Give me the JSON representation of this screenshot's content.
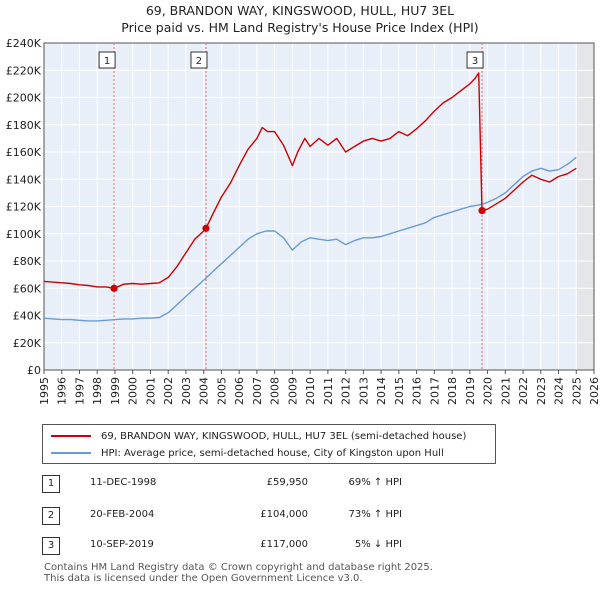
{
  "header": {
    "title_line1": "69, BRANDON WAY, KINGSWOOD, HULL, HU7 3EL",
    "title_line2": "Price paid vs. HM Land Registry's House Price Index (HPI)"
  },
  "legend": {
    "property_label": "69, BRANDON WAY, KINGSWOOD, HULL, HU7 3EL (semi-detached house)",
    "hpi_label": "HPI: Average price, semi-detached house, City of Kingston upon Hull"
  },
  "transactions": [
    {
      "num": "1",
      "date": "11-DEC-1998",
      "price": "£59,950",
      "hpi": "69% ↑ HPI"
    },
    {
      "num": "2",
      "date": "20-FEB-2004",
      "price": "£104,000",
      "hpi": "73% ↑ HPI"
    },
    {
      "num": "3",
      "date": "10-SEP-2019",
      "price": "£117,000",
      "hpi": "5% ↓ HPI"
    }
  ],
  "footer": {
    "line1": "Contains HM Land Registry data © Crown copyright and database right 2025.",
    "line2": "This data is licensed under the Open Government Licence v3.0."
  },
  "colors": {
    "property": "#cc0000",
    "hpi": "#6a9bd2",
    "plot_bg": "#e8eff8",
    "future_band": "#e4e6ea",
    "grid": "#ffffff"
  },
  "chart_data": {
    "type": "line",
    "xlim": [
      1995,
      2026
    ],
    "ylim": [
      0,
      240000
    ],
    "x_ticks": [
      "1995",
      "1996",
      "1997",
      "1998",
      "1999",
      "2000",
      "2001",
      "2002",
      "2003",
      "2004",
      "2005",
      "2006",
      "2007",
      "2008",
      "2009",
      "2010",
      "2011",
      "2012",
      "2013",
      "2014",
      "2015",
      "2016",
      "2017",
      "2018",
      "2019",
      "2020",
      "2021",
      "2022",
      "2023",
      "2024",
      "2025",
      "2026"
    ],
    "y_ticks": [
      {
        "value": 0,
        "label": "£0"
      },
      {
        "value": 20000,
        "label": "£20K"
      },
      {
        "value": 40000,
        "label": "£40K"
      },
      {
        "value": 60000,
        "label": "£60K"
      },
      {
        "value": 80000,
        "label": "£80K"
      },
      {
        "value": 100000,
        "label": "£100K"
      },
      {
        "value": 120000,
        "label": "£120K"
      },
      {
        "value": 140000,
        "label": "£140K"
      },
      {
        "value": 160000,
        "label": "£160K"
      },
      {
        "value": 180000,
        "label": "£180K"
      },
      {
        "value": 200000,
        "label": "£200K"
      },
      {
        "value": 220000,
        "label": "£220K"
      },
      {
        "value": 240000,
        "label": "£240K"
      }
    ],
    "future_start": 2025.0,
    "series": [
      {
        "name": "69, BRANDON WAY, KINGSWOOD, HULL, HU7 3EL (semi-detached house)",
        "x": [
          1995.0,
          1995.5,
          1996.0,
          1996.5,
          1997.0,
          1997.5,
          1998.0,
          1998.5,
          1998.95,
          1999.5,
          2000.0,
          2000.5,
          2001.0,
          2001.5,
          2002.0,
          2002.5,
          2003.0,
          2003.5,
          2004.0,
          2004.13,
          2004.5,
          2005.0,
          2005.5,
          2006.0,
          2006.5,
          2007.0,
          2007.3,
          2007.6,
          2008.0,
          2008.5,
          2009.0,
          2009.3,
          2009.7,
          2010.0,
          2010.5,
          2011.0,
          2011.5,
          2012.0,
          2012.5,
          2013.0,
          2013.5,
          2014.0,
          2014.5,
          2015.0,
          2015.5,
          2016.0,
          2016.5,
          2017.0,
          2017.5,
          2018.0,
          2018.5,
          2019.0,
          2019.3,
          2019.5,
          2019.69,
          2020.0,
          2020.5,
          2021.0,
          2021.5,
          2022.0,
          2022.5,
          2023.0,
          2023.5,
          2024.0,
          2024.5,
          2025.0
        ],
        "values": [
          65000,
          64500,
          64000,
          63500,
          62500,
          62000,
          61000,
          61000,
          59950,
          63000,
          63500,
          63000,
          63500,
          64000,
          68000,
          76000,
          86000,
          96000,
          102000,
          104000,
          114000,
          127000,
          137000,
          150000,
          162000,
          170000,
          178000,
          175000,
          175000,
          165000,
          150000,
          160000,
          170000,
          164000,
          170000,
          165000,
          170000,
          160000,
          164000,
          168000,
          170000,
          168000,
          170000,
          175000,
          172000,
          177000,
          183000,
          190000,
          196000,
          200000,
          205000,
          210000,
          214000,
          218000,
          117000,
          118000,
          122000,
          126000,
          132000,
          138000,
          143000,
          140000,
          138000,
          142000,
          144000,
          148000
        ]
      },
      {
        "name": "HPI: Average price, semi-detached house, City of Kingston upon Hull",
        "x": [
          1995.0,
          1995.5,
          1996.0,
          1996.5,
          1997.0,
          1997.5,
          1998.0,
          1998.5,
          1999.0,
          1999.5,
          2000.0,
          2000.5,
          2001.0,
          2001.5,
          2002.0,
          2002.5,
          2003.0,
          2003.5,
          2004.0,
          2004.5,
          2005.0,
          2005.5,
          2006.0,
          2006.5,
          2007.0,
          2007.5,
          2008.0,
          2008.5,
          2009.0,
          2009.5,
          2010.0,
          2010.5,
          2011.0,
          2011.5,
          2012.0,
          2012.5,
          2013.0,
          2013.5,
          2014.0,
          2014.5,
          2015.0,
          2015.5,
          2016.0,
          2016.5,
          2017.0,
          2017.5,
          2018.0,
          2018.5,
          2019.0,
          2019.5,
          2020.0,
          2020.5,
          2021.0,
          2021.5,
          2022.0,
          2022.5,
          2023.0,
          2023.5,
          2024.0,
          2024.5,
          2025.0
        ],
        "values": [
          38000,
          37500,
          37000,
          37000,
          36500,
          36000,
          36000,
          36500,
          37000,
          37500,
          37500,
          38000,
          38000,
          38500,
          42000,
          48000,
          54000,
          60000,
          66000,
          72000,
          78000,
          84000,
          90000,
          96000,
          100000,
          102000,
          102000,
          97000,
          88000,
          94000,
          97000,
          96000,
          95000,
          96000,
          92000,
          95000,
          97000,
          97000,
          98000,
          100000,
          102000,
          104000,
          106000,
          108000,
          112000,
          114000,
          116000,
          118000,
          120000,
          121000,
          123000,
          126000,
          130000,
          136000,
          142000,
          146000,
          148000,
          146000,
          147000,
          151000,
          156000
        ]
      }
    ],
    "sales": [
      {
        "label": "1",
        "x": 1998.95,
        "value": 59950
      },
      {
        "label": "2",
        "x": 2004.13,
        "value": 104000
      },
      {
        "label": "3",
        "x": 2019.69,
        "value": 117000
      }
    ]
  }
}
